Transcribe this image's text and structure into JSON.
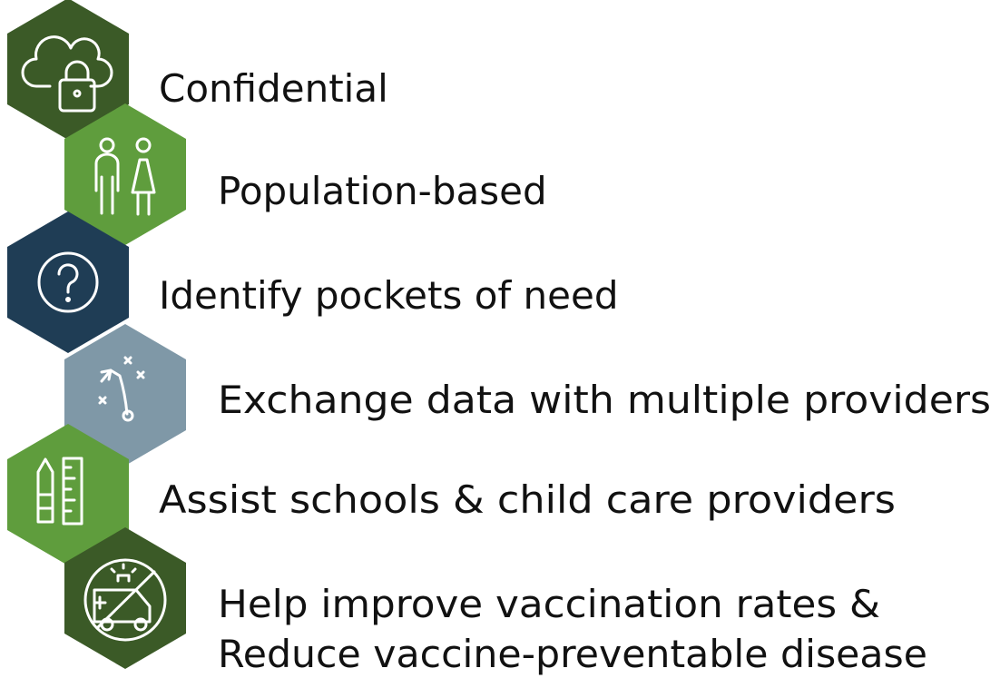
{
  "items": [
    {
      "label": "Confidential"
    },
    {
      "label": "Population-based"
    },
    {
      "label": "Identify pockets of need"
    },
    {
      "label": "Exchange data with multiple providers"
    },
    {
      "label": "Assist schools & child care providers"
    },
    {
      "lines": [
        "Help improve vaccination rates &",
        "Reduce vaccine-preventable disease"
      ]
    }
  ]
}
